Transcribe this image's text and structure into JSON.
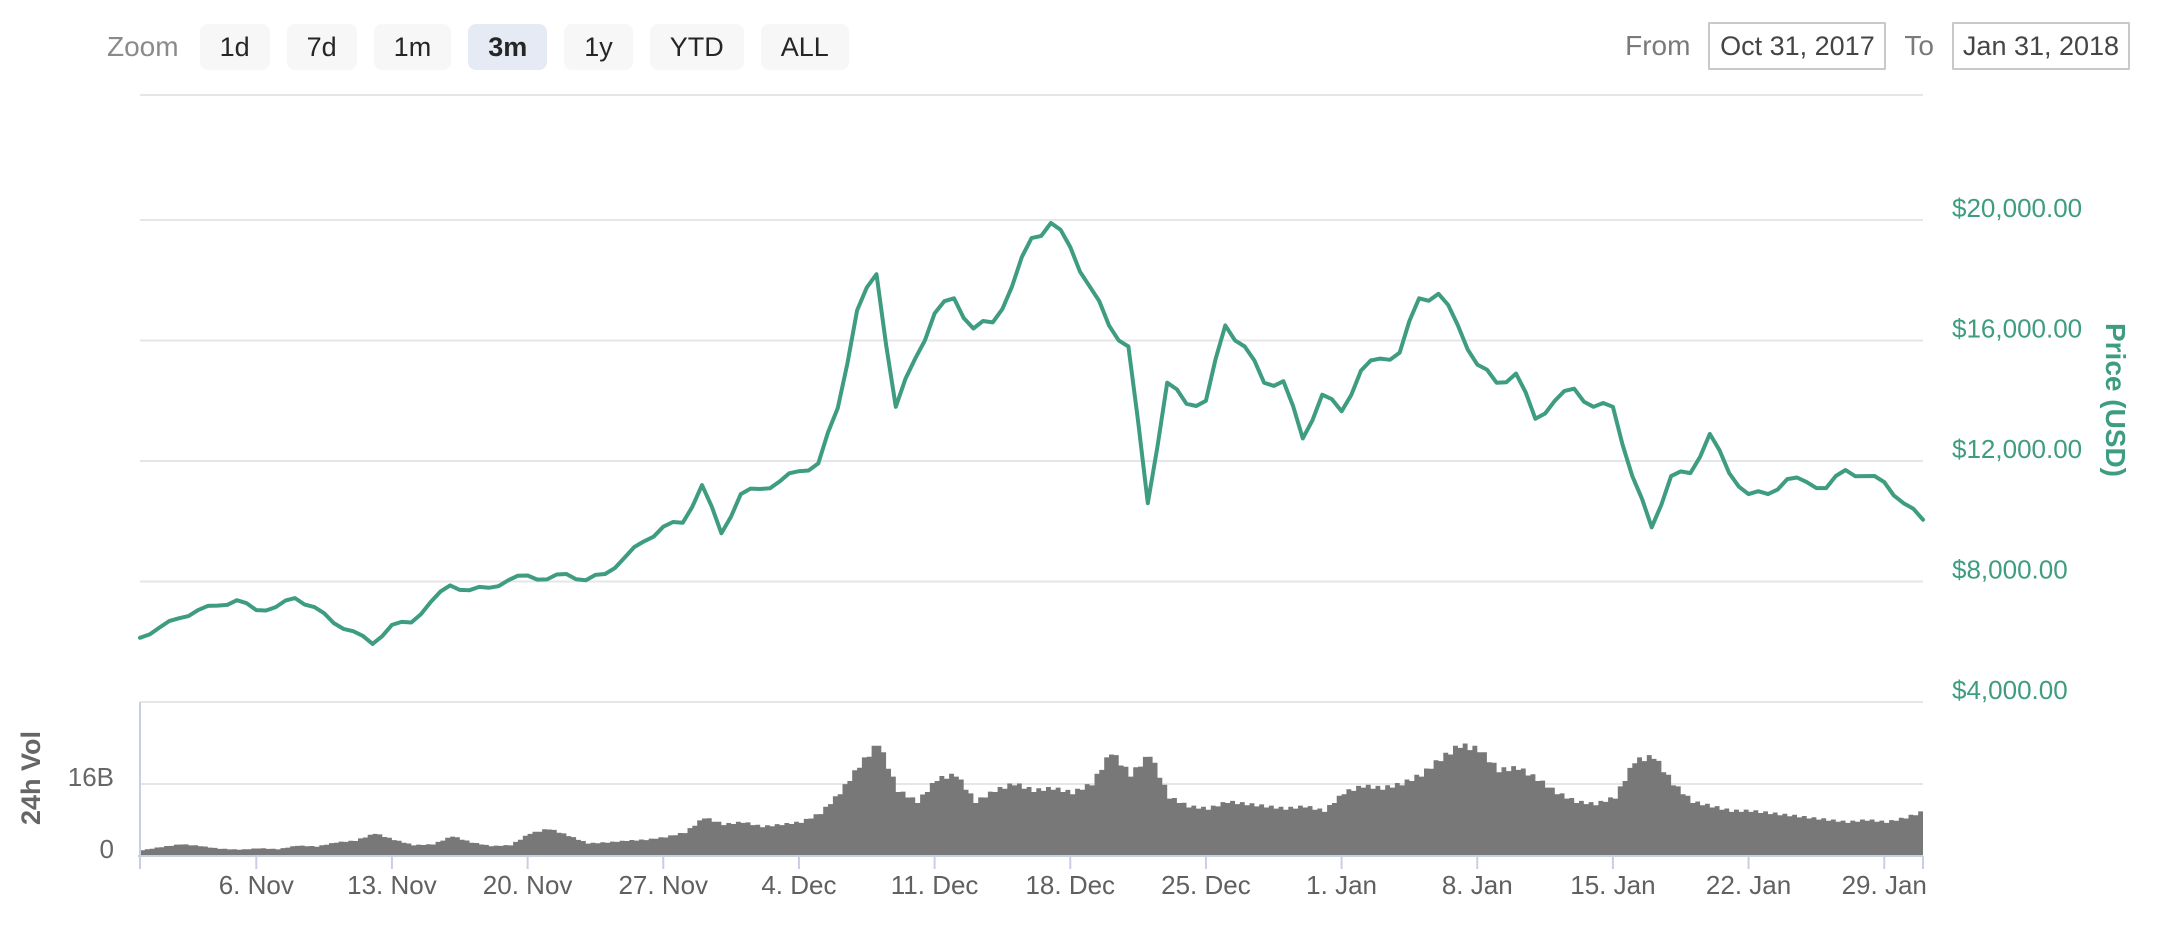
{
  "toolbar": {
    "zoom_label": "Zoom",
    "zoom_buttons": [
      {
        "label": "1d",
        "selected": false
      },
      {
        "label": "7d",
        "selected": false
      },
      {
        "label": "1m",
        "selected": false
      },
      {
        "label": "3m",
        "selected": true
      },
      {
        "label": "1y",
        "selected": false
      },
      {
        "label": "YTD",
        "selected": false
      },
      {
        "label": "ALL",
        "selected": false
      }
    ],
    "from_label": "From",
    "from_value": "Oct 31, 2017",
    "to_label": "To",
    "to_value": "Jan 31, 2018"
  },
  "colors": {
    "price_line": "#3E9C81",
    "price_axis_text": "#3E9C81",
    "volume_fill": "#787878",
    "gridline": "#e6e6e6",
    "axis_line": "#c7d0e2",
    "date_text": "#606060",
    "volume_axis_text": "#666666",
    "button_bg": "#f7f7f7",
    "button_selected_bg": "#e5eaf4",
    "input_border": "#c9c9c9"
  },
  "chart_data": [
    {
      "type": "line",
      "name": "Price (USD)",
      "ylabel": "Price (USD)",
      "x_start_date": "2017-10-31",
      "x_end_date": "2018-01-31",
      "x_interval": "1 day",
      "values": [
        6130,
        6470,
        6780,
        7050,
        7200,
        7380,
        7050,
        7150,
        7450,
        7150,
        6620,
        6350,
        5930,
        6560,
        6640,
        7320,
        7870,
        7710,
        7790,
        8040,
        8200,
        8070,
        8250,
        8040,
        8250,
        8790,
        9330,
        9820,
        9950,
        11200,
        9600,
        10900,
        11070,
        11320,
        11660,
        11920,
        13750,
        17000,
        18200,
        13800,
        15400,
        16900,
        17400,
        16400,
        16600,
        17800,
        19400,
        19900,
        19100,
        17800,
        16500,
        15800,
        10600,
        14600,
        13900,
        14000,
        16500,
        15800,
        14600,
        14650,
        12750,
        14200,
        13650,
        15000,
        15400,
        15600,
        17400,
        17550,
        16500,
        15200,
        14600,
        14900,
        13400,
        14000,
        14400,
        13800,
        13800,
        11500,
        9800,
        11500,
        11600,
        12900,
        11600,
        10900,
        10900,
        11400,
        11300,
        11100,
        11700,
        11500,
        11300,
        10600,
        10050
      ],
      "ylim": [
        4000,
        24150
      ],
      "y_tick_values": [
        4000,
        8000,
        12000,
        16000,
        20000
      ],
      "y_tick_labels": [
        "$4,000.00",
        "$8,000.00",
        "$12,000.00",
        "$16,000.00",
        "$20,000.00"
      ],
      "x_tick_days": [
        6,
        13,
        20,
        27,
        34,
        41,
        48,
        55,
        62,
        69,
        76,
        83,
        90
      ],
      "x_tick_labels": [
        "6. Nov",
        "13. Nov",
        "20. Nov",
        "27. Nov",
        "4. Dec",
        "11. Dec",
        "18. Dec",
        "25. Dec",
        "1. Jan",
        "8. Jan",
        "15. Jan",
        "22. Jan",
        "29. Jan"
      ],
      "grid": true,
      "legend": "none"
    },
    {
      "type": "area",
      "name": "24h Vol",
      "ylabel": "24h Vol",
      "unit": "billions USD",
      "x_start_date": "2017-10-31",
      "x_end_date": "2018-01-31",
      "x_interval": "1 day",
      "values": [
        1.3,
        2.0,
        2.6,
        2.2,
        1.6,
        1.4,
        1.7,
        1.5,
        2.3,
        2.1,
        3.0,
        3.4,
        5.0,
        3.6,
        2.4,
        2.6,
        4.4,
        3.0,
        2.2,
        2.4,
        5.0,
        6.0,
        4.5,
        2.8,
        3.0,
        3.4,
        3.6,
        4.2,
        5.2,
        8.5,
        7.0,
        7.5,
        6.5,
        7.0,
        7.5,
        9.5,
        14.0,
        20.0,
        25.0,
        14.5,
        12.0,
        17.0,
        18.0,
        12.0,
        14.5,
        16.0,
        14.5,
        15.0,
        14.0,
        16.0,
        23.0,
        18.0,
        22.5,
        13.0,
        11.0,
        10.5,
        12.0,
        11.5,
        11.0,
        10.5,
        11.0,
        10.0,
        14.0,
        15.5,
        15.0,
        16.0,
        18.0,
        21.5,
        24.5,
        23.5,
        19.0,
        19.5,
        17.0,
        14.0,
        12.0,
        11.5,
        13.0,
        21.0,
        22.0,
        16.0,
        12.0,
        11.0,
        10.0,
        10.0,
        9.5,
        9.0,
        8.5,
        8.0,
        7.5,
        8.0,
        7.5,
        8.5,
        10.0
      ],
      "ylim": [
        0,
        34.2
      ],
      "y_tick_values": [
        0,
        16
      ],
      "y_tick_labels": [
        "0",
        "16B"
      ],
      "grid": true,
      "legend": "none"
    }
  ]
}
